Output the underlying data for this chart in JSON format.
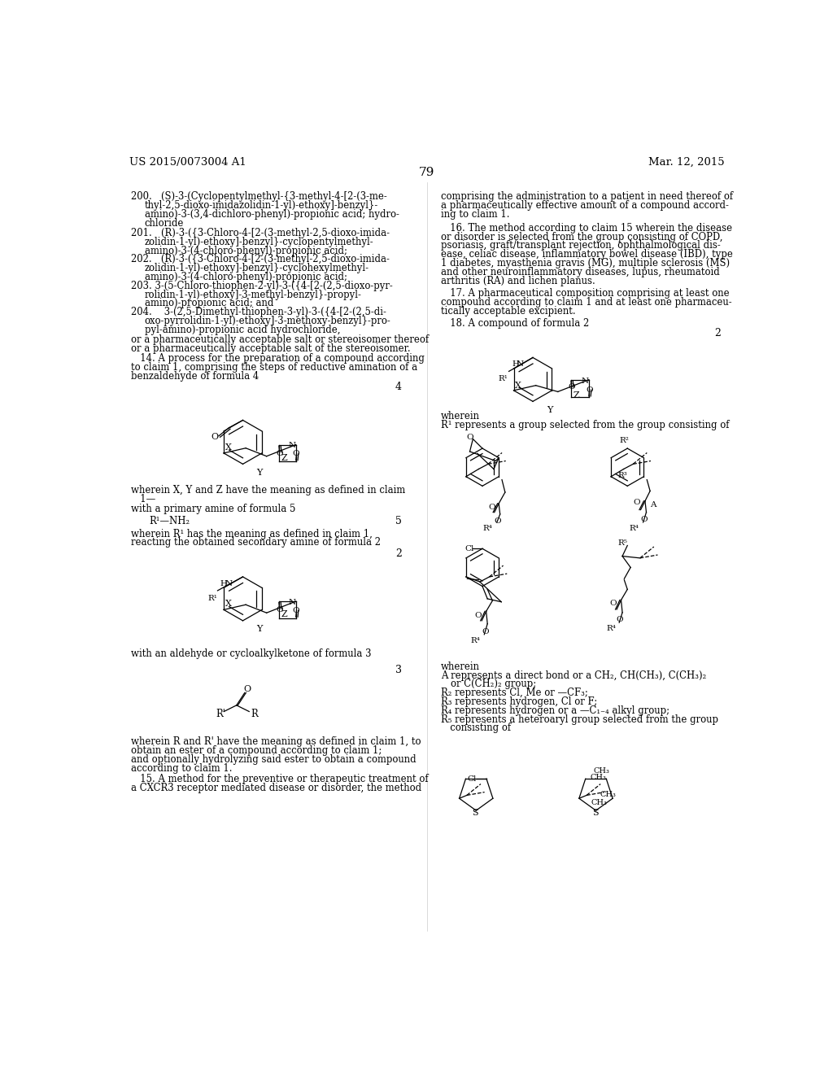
{
  "bg_color": "#ffffff",
  "header_left": "US 2015/0073004 A1",
  "header_right": "Mar. 12, 2015",
  "page_number": "79"
}
